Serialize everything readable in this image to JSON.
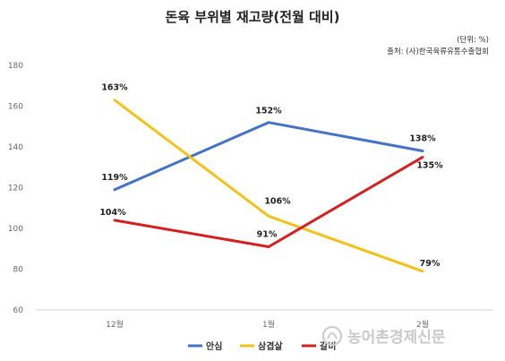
{
  "chart_data": {
    "type": "line",
    "title": "돈육 부위별 재고량(전월 대비)",
    "unit_note": "(단위: %)",
    "source_note": "출처: (사)한국육류유통수출협회",
    "categories": [
      "12월",
      "1월",
      "2월"
    ],
    "ylim": [
      60,
      180
    ],
    "yticks": [
      60,
      80,
      100,
      120,
      140,
      160,
      180
    ],
    "series": [
      {
        "name": "안심",
        "color": "#4472c4",
        "values": [
          119,
          152,
          138
        ],
        "labels": [
          "119%",
          "152%",
          "138%"
        ]
      },
      {
        "name": "삼겹살",
        "color": "#f2c21a",
        "values": [
          163,
          106,
          79
        ],
        "labels": [
          "163%",
          "106%",
          "79%"
        ]
      },
      {
        "name": "갈비",
        "color": "#d42020",
        "values": [
          104,
          91,
          135
        ],
        "labels": [
          "104%",
          "91%",
          "135%"
        ]
      }
    ],
    "grid": false,
    "legend": "bottom-center"
  },
  "watermark": "농어촌경제신문"
}
